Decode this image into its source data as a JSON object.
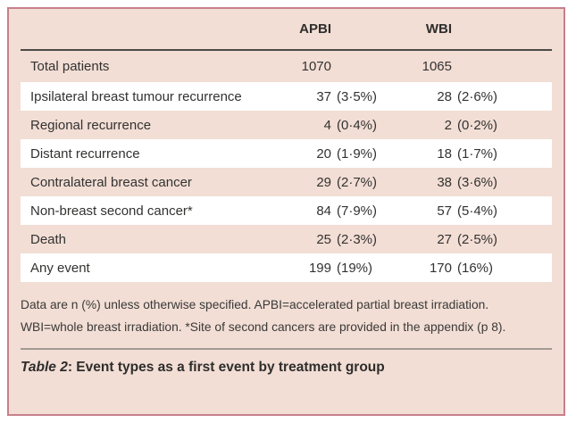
{
  "table": {
    "columns": {
      "apbi": "APBI",
      "wbi": "WBI"
    },
    "rows": [
      {
        "label": "Total patients",
        "apbi_n": "1070",
        "apbi_pct": "",
        "wbi_n": "1065",
        "wbi_pct": ""
      },
      {
        "label": "Ipsilateral breast tumour recurrence",
        "apbi_n": "37",
        "apbi_pct": "(3·5%)",
        "wbi_n": "28",
        "wbi_pct": "(2·6%)"
      },
      {
        "label": "Regional recurrence",
        "apbi_n": "4",
        "apbi_pct": "(0·4%)",
        "wbi_n": "2",
        "wbi_pct": "(0·2%)"
      },
      {
        "label": "Distant recurrence",
        "apbi_n": "20",
        "apbi_pct": "(1·9%)",
        "wbi_n": "18",
        "wbi_pct": "(1·7%)"
      },
      {
        "label": "Contralateral breast cancer",
        "apbi_n": "29",
        "apbi_pct": "(2·7%)",
        "wbi_n": "38",
        "wbi_pct": "(3·6%)"
      },
      {
        "label": "Non-breast second cancer*",
        "apbi_n": "84",
        "apbi_pct": "(7·9%)",
        "wbi_n": "57",
        "wbi_pct": "(5·4%)"
      },
      {
        "label": "Death",
        "apbi_n": "25",
        "apbi_pct": "(2·3%)",
        "wbi_n": "27",
        "wbi_pct": "(2·5%)"
      },
      {
        "label": "Any event",
        "apbi_n": "199",
        "apbi_pct": "(19%)",
        "wbi_n": "170",
        "wbi_pct": "(16%)"
      }
    ],
    "footnote": "Data are n (%) unless otherwise specified. APBI=accelerated partial breast irradiation. WBI=whole breast irradiation. *Site of second cancers are provided in the appendix (p 8).",
    "caption_label": "Table 2",
    "caption_rest": ": Event types as a first event by treatment group"
  },
  "colors": {
    "card_background": "#f2ded5",
    "card_border": "#c87f8b",
    "row_stripe": "#ffffff",
    "header_rule": "#4c4a47",
    "caption_rule": "#a39a94",
    "text": "#333231"
  },
  "chart_data": {
    "type": "table",
    "title": "Table 2: Event types as a first event by treatment group",
    "columns": [
      "",
      "APBI",
      "WBI"
    ],
    "rows": [
      [
        "Total patients",
        "1070",
        "1065"
      ],
      [
        "Ipsilateral breast tumour recurrence",
        "37 (3·5%)",
        "28 (2·6%)"
      ],
      [
        "Regional recurrence",
        "4 (0·4%)",
        "2 (0·2%)"
      ],
      [
        "Distant recurrence",
        "20 (1·9%)",
        "18 (1·7%)"
      ],
      [
        "Contralateral breast cancer",
        "29 (2·7%)",
        "38 (3·6%)"
      ],
      [
        "Non-breast second cancer*",
        "84 (7·9%)",
        "57 (5·4%)"
      ],
      [
        "Death",
        "25 (2·3%)",
        "27 (2·5%)"
      ],
      [
        "Any event",
        "199 (19%)",
        "170 (16%)"
      ]
    ],
    "footnote": "Data are n (%) unless otherwise specified. APBI=accelerated partial breast irradiation. WBI=whole breast irradiation. *Site of second cancers are provided in the appendix (p 8)."
  }
}
